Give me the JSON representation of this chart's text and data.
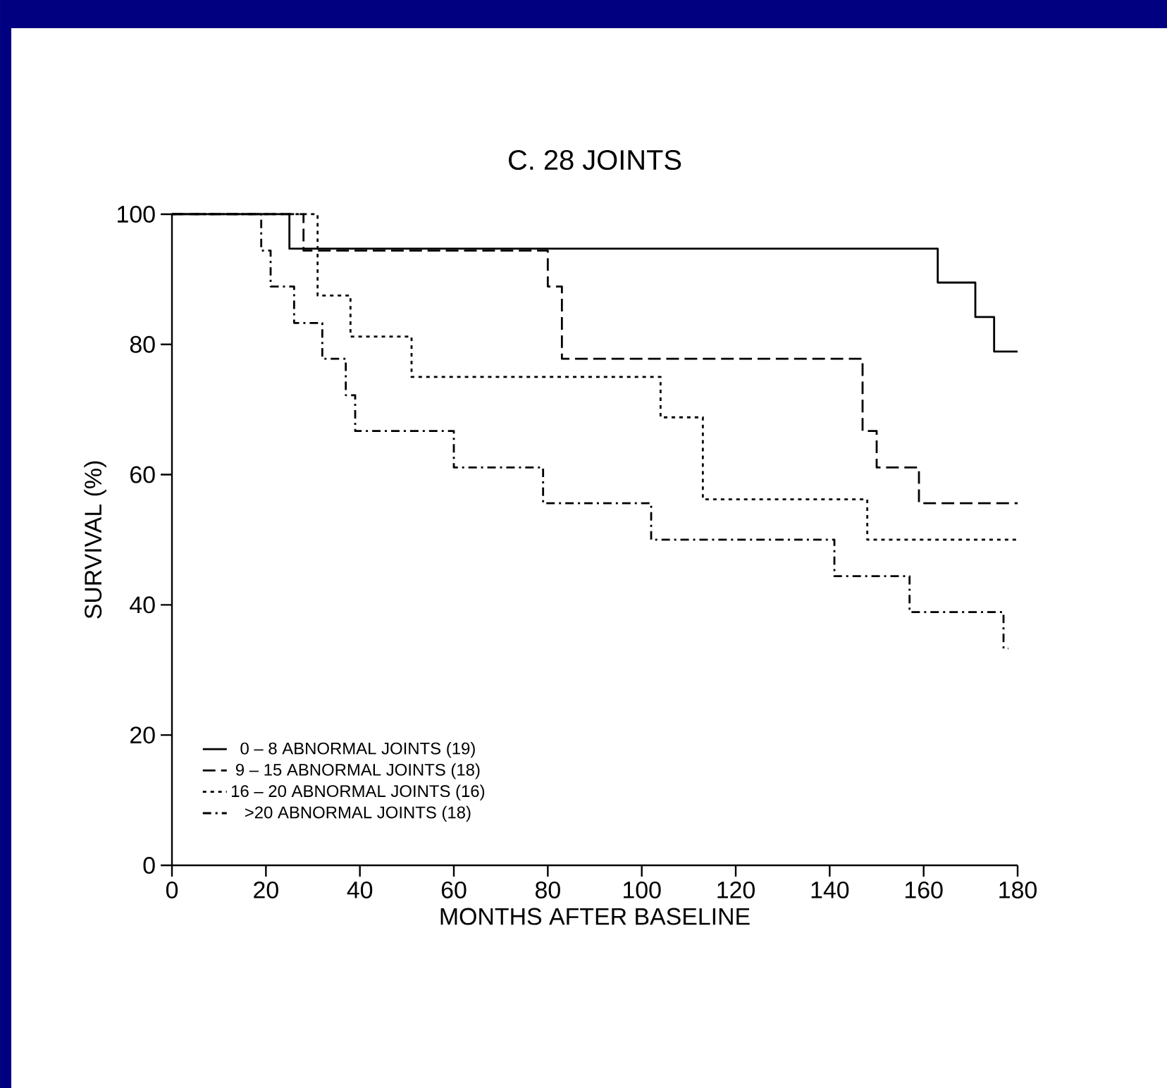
{
  "chart_data": {
    "type": "step",
    "title": "C.  28 JOINTS",
    "xlabel": "MONTHS AFTER BASELINE",
    "ylabel": "SURVIVAL (%)",
    "xlim": [
      0,
      180
    ],
    "ylim": [
      0,
      100
    ],
    "xticks": [
      0,
      20,
      40,
      60,
      80,
      100,
      120,
      140,
      160,
      180
    ],
    "yticks": [
      0,
      20,
      40,
      60,
      80,
      100
    ],
    "grid": false,
    "legend": "bottom left",
    "marker": "none",
    "series": [
      {
        "name": "0 – 8 ABNORMAL JOINTS (19)",
        "color": "#000000",
        "line_style": "solid",
        "x": [
          0,
          25,
          163,
          171,
          175,
          180
        ],
        "values": [
          100,
          94.7,
          89.5,
          84.2,
          78.9,
          78.9
        ]
      },
      {
        "name": "9 – 15 ABNORMAL JOINTS (18)",
        "color": "#000000",
        "line_style": "dashed",
        "x": [
          0,
          28,
          80,
          83,
          147,
          150,
          159,
          180
        ],
        "values": [
          100,
          94.4,
          88.9,
          77.8,
          66.7,
          61.1,
          55.6,
          55.6
        ]
      },
      {
        "name": "16 – 20 ABNORMAL JOINTS (16)",
        "color": "#000000",
        "line_style": "dotted",
        "x": [
          0,
          31,
          38,
          51,
          104,
          113,
          148,
          180
        ],
        "values": [
          100,
          87.5,
          81.2,
          75,
          68.8,
          56.2,
          50,
          50
        ]
      },
      {
        "name": ">20 ABNORMAL JOINTS (18)",
        "color": "#000000",
        "line_style": "dashdotted",
        "x": [
          0,
          19,
          21,
          26,
          32,
          37,
          39,
          60,
          79,
          102,
          141,
          157,
          177,
          178
        ],
        "values": [
          100,
          94.4,
          88.9,
          83.3,
          77.8,
          72.2,
          66.7,
          61.1,
          55.6,
          50,
          44.4,
          38.9,
          33.3,
          33.3
        ]
      }
    ]
  }
}
